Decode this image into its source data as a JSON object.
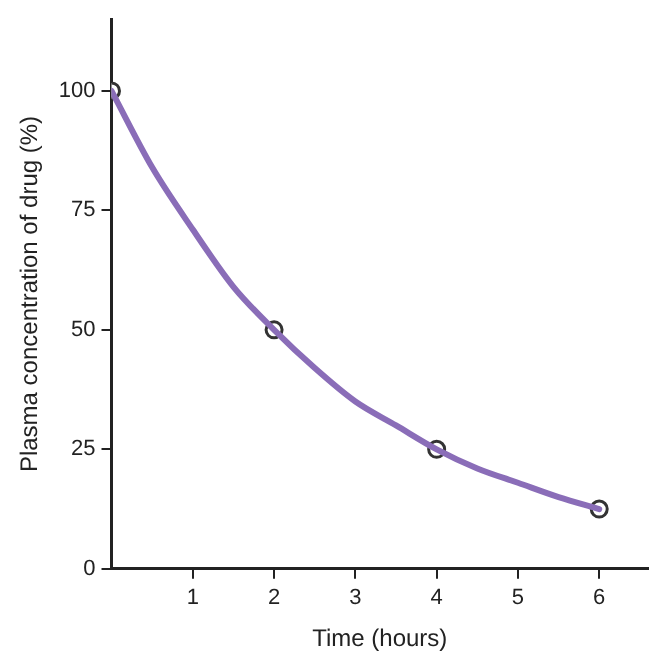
{
  "chart_data": {
    "type": "line",
    "xlabel": "Time (hours)",
    "ylabel": "Plasma concentration of drug (%)",
    "xlim": [
      0,
      6.6
    ],
    "xticks": [
      1,
      2,
      3,
      4,
      5,
      6
    ],
    "ylim": [
      0,
      115
    ],
    "yticks": [
      0,
      25,
      50,
      75,
      100
    ],
    "grid": false,
    "legend": false,
    "series": [
      {
        "marker": "none",
        "x": [
          0,
          0.5,
          1,
          1.5,
          2,
          2.5,
          3,
          3.5,
          4,
          4.5,
          5,
          5.5,
          6
        ],
        "values": [
          100,
          84,
          71,
          59,
          50,
          42,
          35,
          30,
          25,
          21,
          18,
          15,
          12.5
        ],
        "color": "#8a6db8"
      },
      {
        "type": "scatter",
        "marker": "circle",
        "x": [
          0,
          2,
          4,
          6
        ],
        "values": [
          100,
          50,
          25,
          12.5
        ],
        "color": "#333333"
      }
    ]
  }
}
